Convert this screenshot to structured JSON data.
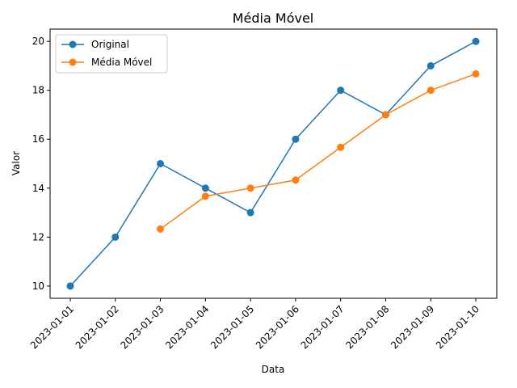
{
  "chart_data": {
    "type": "line",
    "title": "Média Móvel",
    "xlabel": "Data",
    "ylabel": "Valor",
    "categories": [
      "2023-01-01",
      "2023-01-02",
      "2023-01-03",
      "2023-01-04",
      "2023-01-05",
      "2023-01-06",
      "2023-01-07",
      "2023-01-08",
      "2023-01-09",
      "2023-01-10"
    ],
    "yticks": [
      10,
      12,
      14,
      16,
      18,
      20
    ],
    "ylim": [
      9.5,
      20.5
    ],
    "grid": false,
    "legend_position": "top-left",
    "series": [
      {
        "name": "Original",
        "color": "#1f77b4",
        "marker": "circle",
        "values": [
          10,
          12,
          15,
          14,
          13,
          16,
          18,
          17,
          19,
          20
        ]
      },
      {
        "name": "Média Móvel",
        "color": "#ff7f0e",
        "marker": "circle",
        "values": [
          null,
          null,
          12.33,
          13.67,
          14.0,
          14.33,
          15.67,
          17.0,
          18.0,
          18.67
        ]
      }
    ]
  }
}
